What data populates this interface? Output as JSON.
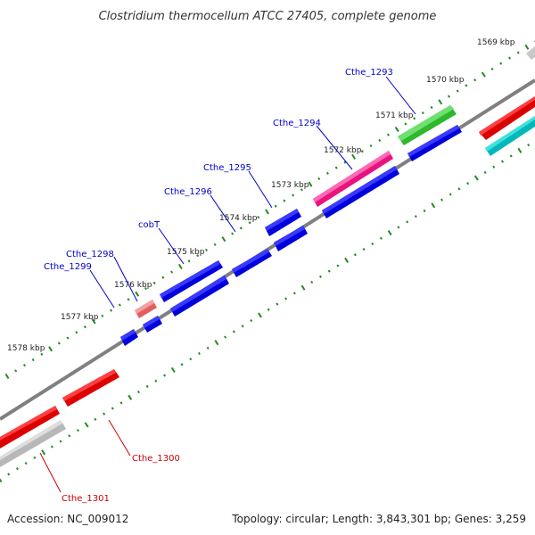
{
  "title": "Clostridium thermocellum ATCC 27405, complete genome",
  "footer": {
    "accession": "Accession: NC_009012",
    "summary": "Topology: circular; Length: 3,843,301 bp; Genes: 3,259"
  },
  "colors": {
    "background": "#ffffff",
    "backbone": "#808080",
    "tick_outer": "#228b22",
    "tick_inner": "#228b22",
    "forward_label": "#0000cc",
    "reverse_label": "#cc0000",
    "blue_gene": "#0000dd",
    "green_gene": "#33cc33",
    "magenta_gene": "#ff1493",
    "pink_gene": "#f08080",
    "red_gene": "#ee0000",
    "grey_gene": "#c8c8c8",
    "cyan_gene": "#00cccc"
  },
  "scale_labels": [
    "1569 kbp",
    "1570 kbp",
    "1571 kbp",
    "1572 kbp",
    "1573 kbp",
    "1574 kbp",
    "1575 kbp",
    "1576 kbp",
    "1577 kbp",
    "1578 kbp"
  ],
  "gene_labels_forward": [
    "Cthe_1293",
    "Cthe_1294",
    "Cthe_1295",
    "Cthe_1296",
    "cobT",
    "Cthe_1298",
    "Cthe_1299"
  ],
  "gene_labels_reverse": [
    "Cthe_1300",
    "Cthe_1301"
  ]
}
